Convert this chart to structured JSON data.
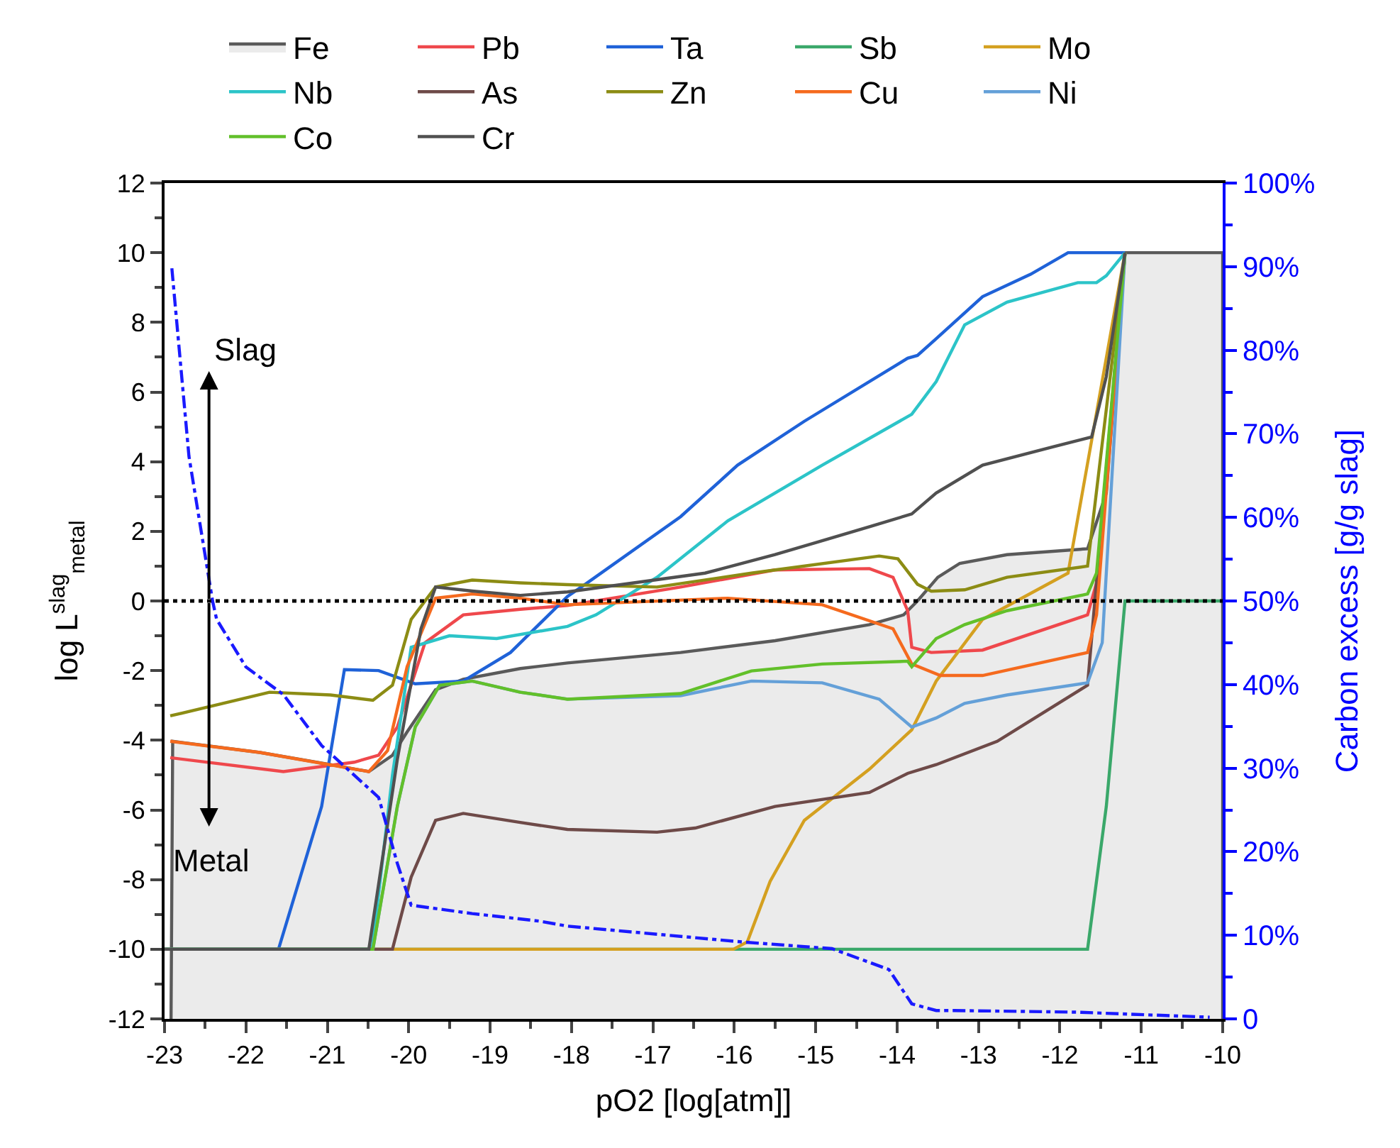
{
  "chart_data": {
    "type": "line",
    "xlabel": "pO2 [log[atm]]",
    "ylabel": "log L$^{slag}$$_{metal}$",
    "y2label": "Carbon excess [g/g slag]",
    "xlim": [
      -23,
      -10
    ],
    "xticks": [
      -23,
      -22,
      -21,
      -20,
      -19,
      -18,
      -17,
      -16,
      -15,
      -14,
      -13,
      -12,
      -11,
      -10
    ],
    "ylim": [
      -12,
      12
    ],
    "yticks": [
      -12,
      -10,
      -8,
      -6,
      -4,
      -2,
      0,
      2,
      4,
      6,
      8,
      10,
      12
    ],
    "y2lim": [
      0,
      100
    ],
    "y2ticks": [
      0,
      {
        "value": 10,
        "label": "10%"
      },
      {
        "value": 20,
        "label": "20%"
      },
      {
        "value": 30,
        "label": "30%"
      },
      {
        "value": 40,
        "label": "40%"
      },
      {
        "value": 50,
        "label": "50%"
      },
      {
        "value": 60,
        "label": "60%"
      },
      {
        "value": 70,
        "label": "70%"
      },
      {
        "value": 80,
        "label": "80%"
      },
      {
        "value": 90,
        "label": "90%"
      },
      {
        "value": 100,
        "label": "100%"
      }
    ],
    "legend": "top",
    "line_style": "solid",
    "ref_lines": [
      {
        "axis": "y",
        "value": 0,
        "color": "#000000",
        "line_style": "dotted"
      }
    ],
    "annotations": [
      "Slag",
      "Metal"
    ],
    "series": [
      {
        "name": "Fe",
        "type": "area",
        "color": "#5a5a5a",
        "x": [
          -22.92,
          -22.9,
          -21.83,
          -20.96,
          -20.49,
          -20.2,
          -20.02,
          -19.67,
          -19.33,
          -18.63,
          -18.05,
          -16.66,
          -15.5,
          -14.34,
          -13.92,
          -13.75,
          -13.5,
          -13.23,
          -12.65,
          -11.66,
          -11.43,
          -11.2,
          -10,
          -10
        ],
        "values": [
          -12,
          -4.03,
          -4.35,
          -4.7,
          -4.9,
          -4.43,
          -3.76,
          -2.55,
          -2.25,
          -1.94,
          -1.78,
          -1.48,
          -1.14,
          -0.68,
          -0.4,
          0,
          0.68,
          1.08,
          1.33,
          1.5,
          3.1,
          10,
          10,
          -12
        ]
      },
      {
        "name": "Pb",
        "color": "#ef484c",
        "x": [
          -22.93,
          -21.54,
          -20.67,
          -20.37,
          -20.14,
          -19.8,
          -19.33,
          -18.63,
          -18.05,
          -16.66,
          -15.5,
          -14.34,
          -14.05,
          -13.87,
          -13.82,
          -13.58,
          -12.95,
          -11.66,
          -11.55,
          -11.2
        ],
        "values": [
          -4.5,
          -4.9,
          -4.63,
          -4.43,
          -3.62,
          -1.2,
          -0.4,
          -0.24,
          -0.13,
          0.4,
          0.89,
          0.93,
          0.68,
          -0.28,
          -1.33,
          -1.48,
          -1.41,
          -0.4,
          0.52,
          10
        ]
      },
      {
        "name": "Ta",
        "color": "#1f62d8",
        "x": [
          -23,
          -21.6,
          -21.07,
          -20.79,
          -20.37,
          -19.92,
          -19.33,
          -18.75,
          -18.05,
          -17.83,
          -16.66,
          -15.96,
          -15.14,
          -13.87,
          -13.75,
          -13.52,
          -12.95,
          -12.36,
          -11.9,
          -11.2
        ],
        "values": [
          -10,
          -10,
          -5.9,
          -1.97,
          -2,
          -2.38,
          -2.3,
          -1.48,
          0.13,
          0.48,
          2.42,
          3.9,
          5.16,
          6.97,
          7.05,
          7.53,
          8.74,
          9.38,
          10,
          10
        ]
      },
      {
        "name": "Sb",
        "color": "#3aa86a",
        "x": [
          -23,
          -11.66,
          -11.43,
          -11.2,
          -10
        ],
        "values": [
          -10,
          -10,
          -5.9,
          0,
          0
        ]
      },
      {
        "name": "Mo",
        "color": "#d4a020",
        "x": [
          -23,
          -16.01,
          -15.84,
          -15.56,
          -15.14,
          -14.34,
          -13.82,
          -13.52,
          -12.95,
          -11.9,
          -11.2
        ],
        "values": [
          -10,
          -10,
          -9.79,
          -8.05,
          -6.3,
          -4.83,
          -3.7,
          -2.3,
          -0.53,
          0.8,
          10
        ]
      },
      {
        "name": "Nb",
        "color": "#2cc4c8",
        "x": [
          -23,
          -20.45,
          -20.2,
          -19.97,
          -19.5,
          -18.92,
          -18.05,
          -17.7,
          -16.95,
          -16.08,
          -14.92,
          -13.82,
          -13.52,
          -13.17,
          -12.65,
          -11.78,
          -11.55,
          -11.43,
          -11.2
        ],
        "values": [
          -10,
          -10,
          -5,
          -1.33,
          -1,
          -1.08,
          -0.73,
          -0.4,
          0.68,
          2.3,
          3.9,
          5.36,
          6.3,
          7.93,
          8.58,
          9.14,
          9.14,
          9.34,
          10
        ]
      },
      {
        "name": "As",
        "color": "#6e4a48",
        "x": [
          -23,
          -20.2,
          -19.97,
          -19.67,
          -19.33,
          -18.63,
          -18.05,
          -16.95,
          -16.48,
          -15.5,
          -14.34,
          -13.87,
          -13.52,
          -12.77,
          -11.66,
          -11.2
        ],
        "values": [
          -10,
          -10,
          -7.93,
          -6.3,
          -6.1,
          -6.36,
          -6.56,
          -6.64,
          -6.52,
          -5.9,
          -5.5,
          -4.95,
          -4.7,
          -4.03,
          -2.42,
          10
        ]
      },
      {
        "name": "Zn",
        "color": "#8c8c14",
        "x": [
          -22.93,
          -21.71,
          -20.96,
          -20.44,
          -20.2,
          -19.97,
          -19.67,
          -19.22,
          -18.63,
          -18.05,
          -16.95,
          -15.79,
          -14.22,
          -13.99,
          -13.75,
          -13.58,
          -13.17,
          -12.65,
          -11.66,
          -11.2
        ],
        "values": [
          -3.3,
          -2.62,
          -2.7,
          -2.85,
          -2.42,
          -0.53,
          0.4,
          0.6,
          0.52,
          0.47,
          0.4,
          0.8,
          1.29,
          1.21,
          0.48,
          0.28,
          0.32,
          0.68,
          1.0,
          10
        ]
      },
      {
        "name": "Cu",
        "color": "#f56a1e",
        "x": [
          -22.93,
          -21.83,
          -20.49,
          -20.26,
          -20.02,
          -19.67,
          -19.22,
          -18.63,
          -18.05,
          -16.08,
          -14.92,
          -14.05,
          -13.82,
          -13.47,
          -12.95,
          -11.66,
          -11.55,
          -11.2
        ],
        "values": [
          -4.03,
          -4.35,
          -4.9,
          -4.3,
          -1.89,
          0.08,
          0.2,
          0.08,
          -0.11,
          0.08,
          -0.11,
          -0.8,
          -1.81,
          -2.14,
          -2.14,
          -1.48,
          -0.4,
          10
        ]
      },
      {
        "name": "Ni",
        "color": "#64a0d8",
        "x": [
          -23,
          -20.44,
          -20.14,
          -19.92,
          -19.62,
          -19.22,
          -18.63,
          -18.05,
          -16.66,
          -15.79,
          -14.92,
          -14.22,
          -13.82,
          -13.52,
          -13.17,
          -12.65,
          -11.66,
          -11.48,
          -11.2
        ],
        "values": [
          -10,
          -10,
          -5.9,
          -3.62,
          -2.42,
          -2.3,
          -2.62,
          -2.82,
          -2.72,
          -2.3,
          -2.35,
          -2.82,
          -3.62,
          -3.36,
          -2.94,
          -2.7,
          -2.35,
          -1.2,
          10
        ]
      },
      {
        "name": "Co",
        "color": "#62c02a",
        "x": [
          -23,
          -20.44,
          -20.14,
          -19.92,
          -19.62,
          -19.22,
          -18.63,
          -18.05,
          -16.66,
          -15.79,
          -14.92,
          -13.87,
          -13.82,
          -13.52,
          -13.17,
          -12.65,
          -11.66,
          -11.55,
          -11.2
        ],
        "values": [
          -10,
          -10,
          -5.9,
          -3.62,
          -2.42,
          -2.3,
          -2.62,
          -2.82,
          -2.66,
          -2.01,
          -1.81,
          -1.73,
          -1.89,
          -1.08,
          -0.68,
          -0.28,
          0.2,
          0.8,
          10
        ]
      },
      {
        "name": "Cr",
        "color": "#505050",
        "x": [
          -23,
          -20.49,
          -20.14,
          -19.85,
          -19.67,
          -19.2,
          -18.63,
          -18.05,
          -16.36,
          -15.5,
          -14.34,
          -13.82,
          -13.52,
          -12.95,
          -12.08,
          -11.61,
          -11.43,
          -11.2
        ],
        "values": [
          -10,
          -10,
          -4.55,
          -0.8,
          0.4,
          0.28,
          0.16,
          0.26,
          0.8,
          1.33,
          2.13,
          2.5,
          3.1,
          3.9,
          4.43,
          4.71,
          6.44,
          10
        ]
      },
      {
        "type": "line",
        "axis": "y2",
        "color": "#1a1aff",
        "line_style": "dashdot",
        "x": [
          -22.91,
          -22.7,
          -22.41,
          -22.36,
          -22.0,
          -21.54,
          -21.07,
          -20.37,
          -20.14,
          -19.97,
          -19.22,
          -18.4,
          -18.05,
          -15.9,
          -14.8,
          -14.1,
          -13.82,
          -13.52,
          -13.3,
          -11.78,
          -10.16
        ],
        "values": [
          89.8,
          67.3,
          50,
          47.8,
          42.1,
          38.8,
          32.7,
          26.5,
          18.6,
          13.6,
          12.6,
          11.7,
          11.1,
          9.2,
          8.4,
          5.9,
          1.8,
          1.0,
          1.0,
          0.8,
          0.2
        ]
      }
    ]
  }
}
